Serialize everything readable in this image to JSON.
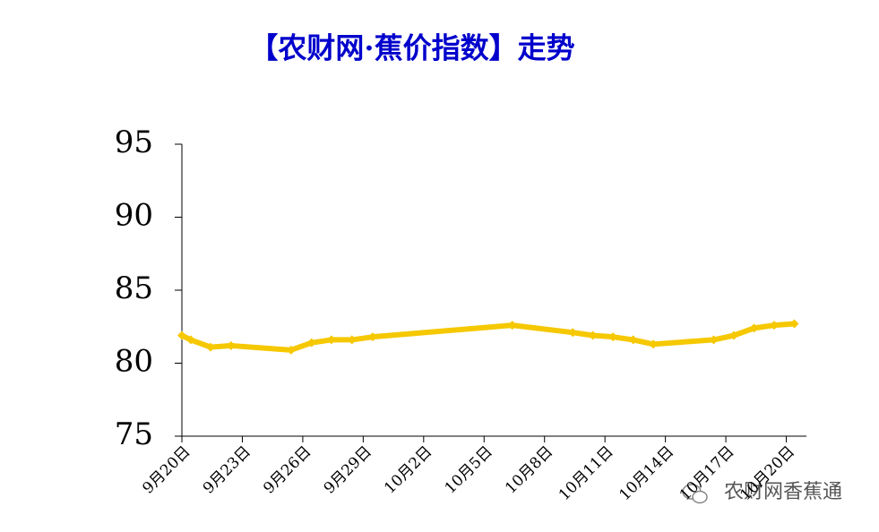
{
  "chart_data": {
    "type": "line",
    "title": "【农财网·蕉价指数】走势",
    "x": [
      0,
      0.44,
      1.42,
      2.44,
      5.42,
      6.44,
      7.42,
      8.44,
      9.47,
      16.4,
      19.4,
      20.4,
      21.4,
      22.4,
      23.4,
      26.4,
      27.4,
      28.4,
      29.4,
      30.4
    ],
    "series": [
      {
        "color": "#f5c800",
        "values": [
          81.9,
          81.6,
          81.1,
          81.2,
          80.9,
          81.4,
          81.6,
          81.6,
          81.8,
          82.6,
          82.1,
          81.9,
          81.8,
          81.6,
          81.3,
          81.6,
          81.9,
          82.4,
          82.6,
          82.7
        ]
      }
    ],
    "xlim": [
      0,
      31
    ],
    "xticks": [
      {
        "value": 0,
        "label": "9月20日"
      },
      {
        "value": 3,
        "label": "9月23日"
      },
      {
        "value": 6,
        "label": "9月26日"
      },
      {
        "value": 9,
        "label": "9月29日"
      },
      {
        "value": 12,
        "label": "10月2日"
      },
      {
        "value": 15,
        "label": "10月5日"
      },
      {
        "value": 18,
        "label": "10月8日"
      },
      {
        "value": 21,
        "label": "10月11日"
      },
      {
        "value": 24,
        "label": "10月14日"
      },
      {
        "value": 27,
        "label": "10月17日"
      },
      {
        "value": 30,
        "label": "10月20日"
      }
    ],
    "ylim": [
      75,
      95
    ],
    "yticks": [
      75,
      80,
      85,
      90,
      95
    ],
    "grid": false,
    "watermark": "农财网香蕉通"
  }
}
